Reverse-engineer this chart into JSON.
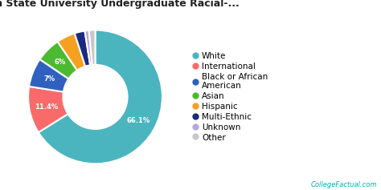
{
  "title": "Michigan State University Undergraduate Racial-...",
  "labels": [
    "White",
    "International",
    "Black or African\nAmerican",
    "Asian",
    "Hispanic",
    "Multi-Ethnic",
    "Unknown",
    "Other"
  ],
  "legend_labels": [
    "White",
    "International",
    "Black or African\nAmerican",
    "Asian",
    "Hispanic",
    "Multi-Ethnic",
    "Unknown",
    "Other"
  ],
  "values": [
    66.1,
    11.4,
    7.0,
    6.0,
    4.5,
    2.5,
    1.0,
    1.5
  ],
  "colors": [
    "#4ab5bf",
    "#f96b6b",
    "#3060c0",
    "#4cba30",
    "#f5a020",
    "#1a2a80",
    "#b8a8e0",
    "#c8c8c8"
  ],
  "pct_labels": [
    "66.1%",
    "11.4%",
    "7%",
    "6%",
    "",
    "",
    "",
    ""
  ],
  "bg_color": "#ffffff",
  "title_fontsize": 9,
  "legend_fontsize": 7.5,
  "watermark": "CollegeFactual.com",
  "watermark_color": "#00b0b0"
}
